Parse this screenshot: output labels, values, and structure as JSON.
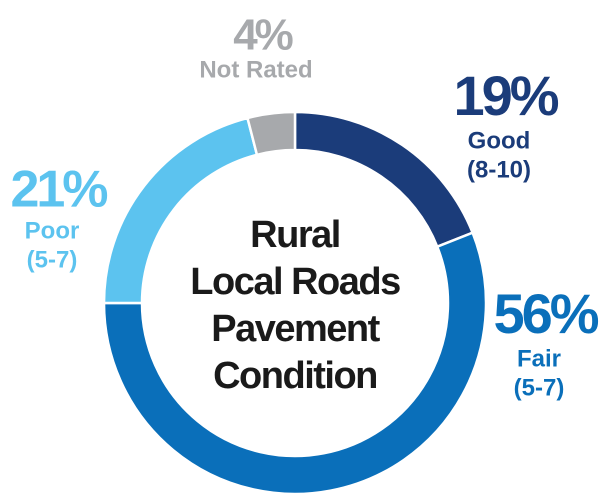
{
  "chart_data": {
    "type": "donut",
    "title": [
      "Rural",
      "Local Roads",
      "Pavement",
      "Condition"
    ],
    "categories": [
      "Good",
      "Fair",
      "Poor",
      "Not Rated"
    ],
    "category_notes": [
      "(8-10)",
      "(5-7)",
      "(5-7)",
      null
    ],
    "values": [
      19,
      56,
      21,
      4
    ],
    "value_labels": [
      "19%",
      "56%",
      "21%",
      "4%"
    ],
    "colors": [
      "#1b3c7a",
      "#0a6fba",
      "#5cc3ef",
      "#a7a9ac"
    ]
  }
}
